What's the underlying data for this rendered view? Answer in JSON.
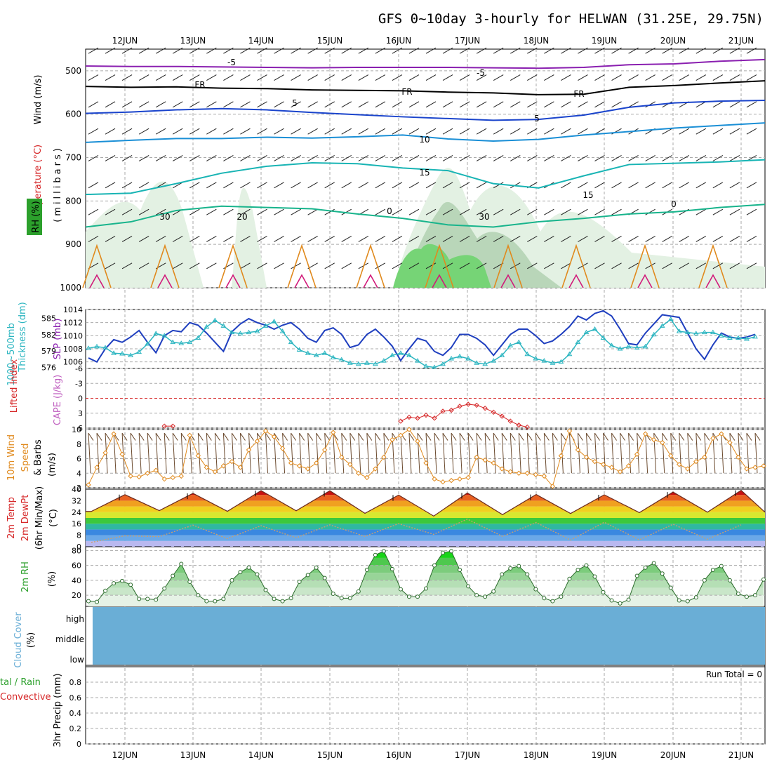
{
  "title": "GFS 0~10day 3-hourly for HELWAN (31.25E, 29.75N)",
  "colors": {
    "rh": "#2ca02c",
    "slp": "#1f3fbf",
    "thickness": "#2bb5c0",
    "li": "#d62728",
    "cape": "#c060c0",
    "wind": "#e08a1e",
    "temp_label": "#d62728",
    "cloud": "#6aaed6",
    "precip_total": "#2ca02c",
    "precip_conv": "#d62728"
  },
  "chart_data": [
    {
      "type": "line",
      "panel": "upper-air cross-section",
      "ylabel": "(millibars)",
      "left_labels": [
        "Wind (m/s)",
        "Temperature (°C)",
        "RH (%)"
      ],
      "yticks": [
        "500",
        "600",
        "700",
        "800",
        "900",
        "1000"
      ],
      "ylim": [
        450,
        1000
      ],
      "isotherms": [
        {
          "name": "-5",
          "color": "#8a1fb0",
          "values": [
            489,
            490,
            490,
            491,
            492,
            493,
            492,
            492,
            492,
            493,
            494,
            492,
            486,
            484,
            478,
            474
          ]
        },
        {
          "name": "FR",
          "color": "#000000",
          "values": [
            536,
            538,
            537,
            540,
            541,
            544,
            545,
            546,
            549,
            551,
            555,
            554,
            538,
            534,
            528,
            523
          ]
        },
        {
          "name": "5",
          "color": "#1a44cc",
          "values": [
            598,
            595,
            590,
            587,
            590,
            596,
            601,
            606,
            610,
            614,
            612,
            602,
            584,
            574,
            570,
            568
          ]
        },
        {
          "name": "10",
          "color": "#1a8fd6",
          "values": [
            665,
            660,
            656,
            656,
            653,
            655,
            652,
            648,
            657,
            662,
            658,
            648,
            640,
            632,
            626,
            620
          ]
        },
        {
          "name": "15",
          "color": "#18b4b4",
          "values": [
            785,
            782,
            760,
            736,
            720,
            712,
            714,
            724,
            730,
            760,
            770,
            742,
            716,
            713,
            710,
            705
          ]
        },
        {
          "name": "20",
          "color": "#18b48c",
          "values": [
            860,
            848,
            822,
            812,
            815,
            818,
            830,
            840,
            855,
            860,
            848,
            840,
            830,
            825,
            815,
            808
          ]
        }
      ],
      "contour_labels": [
        "-5",
        "-5",
        "FR",
        "FR",
        "FR",
        "5",
        "5",
        "10",
        "15",
        "15",
        "20",
        "0",
        "0",
        "30",
        "30"
      ]
    },
    {
      "type": "line",
      "panel": "slp-thickness",
      "series": [
        {
          "name": "SLP (mb)",
          "color": "#1f3fbf",
          "yticks": [
            "1006",
            "1008",
            "1010",
            "1012",
            "1014"
          ],
          "ylim": [
            1005,
            1014
          ],
          "values": [
            1006.6,
            1006.0,
            1008.0,
            1009.4,
            1009.0,
            1009.8,
            1010.8,
            1009.0,
            1007.4,
            1010.0,
            1010.8,
            1010.6,
            1012.0,
            1011.6,
            1010.4,
            1009.0,
            1007.6,
            1010.6,
            1011.8,
            1012.6,
            1012.0,
            1011.6,
            1011.0,
            1011.6,
            1012.0,
            1011.0,
            1009.6,
            1009.0,
            1010.8,
            1011.2,
            1010.2,
            1008.2,
            1008.6,
            1010.2,
            1011.0,
            1009.8,
            1008.4,
            1006.2,
            1008.0,
            1009.6,
            1009.2,
            1007.6,
            1007.0,
            1008.2,
            1010.2,
            1010.2,
            1009.6,
            1008.6,
            1007.0,
            1008.6,
            1010.2,
            1011.0,
            1011.0,
            1010.0,
            1008.8,
            1009.2,
            1010.2,
            1011.4,
            1013.0,
            1012.4,
            1013.4,
            1013.8,
            1013.0,
            1011.0,
            1008.8,
            1008.6,
            1010.4,
            1011.8,
            1013.2,
            1013.0,
            1012.8,
            1010.4,
            1008.0,
            1006.4,
            1008.6,
            1010.4,
            1009.8,
            1009.6,
            1009.8,
            1010.2
          ]
        },
        {
          "name": "1000~500mb Thickness (dm)",
          "color": "#2bb5c0",
          "yticks": [
            "576",
            "579",
            "582",
            "585"
          ],
          "ylim": [
            575.8,
            586.6
          ],
          "values": [
            579.5,
            579.8,
            579.6,
            578.6,
            578.5,
            578.2,
            578.8,
            580.3,
            582.2,
            581.8,
            580.6,
            580.4,
            580.6,
            581.4,
            583.4,
            584.6,
            583.6,
            582.4,
            582.2,
            582.4,
            582.6,
            583.6,
            584.4,
            582.6,
            580.6,
            579.2,
            578.6,
            578.2,
            578.6,
            577.8,
            577.4,
            576.8,
            576.6,
            576.8,
            576.6,
            577.2,
            578.2,
            578.6,
            578.2,
            577.2,
            576.2,
            576.0,
            576.6,
            577.6,
            578.0,
            577.6,
            576.8,
            576.6,
            577.2,
            578.2,
            580.0,
            580.6,
            578.4,
            577.6,
            577.2,
            576.8,
            577.0,
            578.4,
            580.6,
            582.4,
            583.0,
            581.4,
            580.0,
            579.4,
            579.8,
            579.6,
            579.8,
            582.0,
            583.6,
            584.8,
            582.6,
            582.4,
            582.2,
            582.4,
            582.4,
            581.8,
            581.4,
            581.4,
            581.2,
            581.6
          ]
        }
      ]
    },
    {
      "type": "line",
      "panel": "lifted-index-cape",
      "series": [
        {
          "name": "Lifted Index",
          "color": "#d62728",
          "yticks": [
            "6",
            "3",
            "0",
            "-3",
            "-6"
          ],
          "ylim": [
            6,
            -6
          ],
          "values": [
            null,
            null,
            null,
            null,
            null,
            null,
            null,
            null,
            null,
            5.6,
            5.6,
            null,
            null,
            null,
            null,
            null,
            null,
            null,
            null,
            null,
            null,
            null,
            null,
            null,
            null,
            null,
            null,
            null,
            null,
            null,
            null,
            null,
            null,
            null,
            null,
            null,
            null,
            4.6,
            3.8,
            4.0,
            3.4,
            4.0,
            2.6,
            2.4,
            1.6,
            1.2,
            1.4,
            2.0,
            2.8,
            3.6,
            4.6,
            5.4,
            5.8,
            null,
            null,
            null,
            null,
            null,
            null,
            null,
            null,
            null,
            null,
            null,
            null,
            null,
            null,
            null,
            null,
            null,
            null,
            null,
            null,
            null,
            null,
            null,
            null,
            null,
            null,
            null
          ]
        },
        {
          "name": "CAPE (J/kg)",
          "color": "#c060c0",
          "values": []
        }
      ]
    },
    {
      "type": "line",
      "panel": "10m-wind",
      "name": "10m Wind Speed & Barbs (m/s)",
      "color": "#e08a1e",
      "yticks": [
        "2",
        "4",
        "6",
        "8",
        "10"
      ],
      "ylim": [
        2,
        10
      ],
      "values": [
        2.4,
        4.8,
        6.8,
        9.4,
        6.6,
        3.6,
        3.5,
        4.0,
        4.4,
        3.2,
        3.4,
        3.6,
        9.2,
        6.4,
        4.8,
        4.2,
        5.0,
        5.6,
        4.8,
        7.2,
        8.4,
        9.8,
        9.0,
        7.4,
        5.4,
        5.0,
        4.6,
        5.4,
        7.2,
        9.6,
        6.2,
        5.2,
        4.0,
        3.4,
        4.6,
        6.2,
        8.6,
        9.2,
        10.0,
        8.4,
        5.4,
        3.2,
        2.8,
        3.0,
        3.2,
        3.4,
        6.2,
        5.8,
        5.4,
        4.6,
        4.2,
        4.0,
        4.0,
        3.8,
        3.6,
        2.2,
        6.4,
        9.8,
        7.2,
        6.2,
        5.6,
        5.2,
        4.8,
        4.2,
        5.0,
        6.6,
        9.4,
        8.6,
        8.2,
        6.4,
        5.2,
        4.6,
        5.6,
        6.2,
        8.8,
        9.4,
        8.2,
        6.2,
        4.6,
        4.8,
        5.0
      ]
    },
    {
      "type": "area",
      "panel": "2m-temp-dewpoint",
      "name": "2m Temp, 2m DewPt, (6hr Min/Max) (°C)",
      "yticks": [
        "0",
        "8",
        "16",
        "24",
        "32",
        "40"
      ],
      "ylim": [
        0,
        40
      ],
      "max_temps": [
        36.2,
        37.1,
        39.0,
        38.9,
        35.9,
        37.4,
        36.3,
        36.1,
        38.0,
        39.2
      ],
      "min_temps": [
        24.5,
        25.1,
        24.6,
        25.0,
        23.2,
        21.3,
        22.3,
        23.1,
        23.7,
        24.0
      ],
      "dewpt_high": [
        7.6,
        15.0,
        14.6,
        15.2,
        16.0,
        19.2,
        16.8,
        17.0,
        15.6,
        15.2
      ],
      "dewpt_low": [
        3.0,
        7.0,
        5.6,
        6.2,
        7.2,
        8.6,
        7.2,
        4.6,
        4.8,
        5.2
      ]
    },
    {
      "type": "area",
      "panel": "2m-rh",
      "name": "2m RH (%)",
      "color": "#2ca02c",
      "yticks": [
        "20",
        "40",
        "60",
        "80"
      ],
      "ylim": [
        5,
        85
      ],
      "values": [
        12,
        11,
        26,
        36,
        39,
        34,
        15,
        15,
        14,
        29,
        46,
        62,
        38,
        20,
        12,
        12,
        15,
        40,
        51,
        57,
        48,
        27,
        15,
        12,
        16,
        38,
        47,
        57,
        43,
        22,
        16,
        16,
        25,
        54,
        74,
        79,
        55,
        28,
        18,
        18,
        29,
        60,
        77,
        79,
        54,
        32,
        20,
        18,
        25,
        48,
        56,
        59,
        48,
        28,
        16,
        12,
        18,
        42,
        54,
        60,
        45,
        24,
        13,
        9,
        14,
        46,
        57,
        63,
        49,
        30,
        13,
        12,
        17,
        40,
        54,
        59,
        40,
        22,
        18,
        20,
        41
      ]
    },
    {
      "type": "heatmap",
      "panel": "cloud-cover",
      "name": "Cloud Cover (%)",
      "levels": [
        "high",
        "middle",
        "low"
      ],
      "values": [
        0,
        0,
        0
      ]
    },
    {
      "type": "bar",
      "panel": "3hr-precip",
      "name": "3hr Precip (mm)",
      "series_labels": [
        "Total / Rain",
        "Convective"
      ],
      "yticks": [
        "0",
        "0.2",
        "0.4",
        "0.6",
        "0.8"
      ],
      "ylim": [
        0,
        1
      ],
      "run_total": "Run Total = 0",
      "values": []
    }
  ],
  "x_axis": {
    "top_labels": [
      "12JUN",
      "13JUN",
      "14JUN",
      "15JUN",
      "16JUN",
      "17JUN",
      "18JUN",
      "19JUN",
      "20JUN",
      "21JUN"
    ],
    "bottom_labels": [
      "12JUN",
      "13JUN",
      "14JUN",
      "15JUN",
      "16JUN",
      "17JUN",
      "18JUN",
      "19JUN",
      "20JUN",
      "21JUN"
    ]
  },
  "axis_labels": {
    "wind": "Wind (m/s)",
    "temp": "Temperature (°C)",
    "rh": "RH (%)",
    "mb": "(millibars)",
    "thick1": "1000~500mb",
    "thick2": "Thickness (dm)",
    "slp": "SLP (mb)",
    "li": "Lifted Index",
    "cape": "CAPE (J/kg)",
    "wind10a": "10m Wind",
    "wind10b": "Speed",
    "wind10c": "(m/s)",
    "wind10d": "& Barbs",
    "t2a": "2m Temp",
    "t2b": "2m DewPt",
    "t2c": "(6hr Min/Max)",
    "t2d": "(°C)",
    "rh2": "2m RH",
    "pct": "(%)",
    "cloud": "Cloud Cover",
    "cloud_pct": "(%)",
    "precip_a": "tal / Rain",
    "precip_b": "Convective",
    "precip_c": "3hr Precip (mm)"
  }
}
